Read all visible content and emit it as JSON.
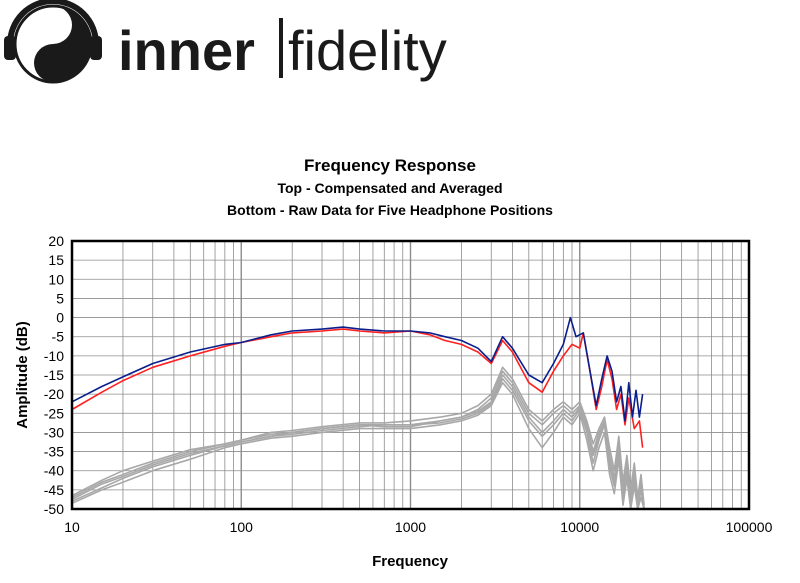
{
  "logo": {
    "wordmark_left": "inner",
    "wordmark_right": "fidelity"
  },
  "colors": {
    "series_blue": "#0a1e8c",
    "series_red": "#ff2020",
    "series_raw": "#a8a8a8",
    "grid": "#8c8c8c"
  },
  "chart_data": {
    "type": "line",
    "title": "Frequency Response",
    "subtitle_1": "Top -  Compensated and Averaged",
    "subtitle_2": "Bottom - Raw Data for Five Headphone Positions",
    "xlabel": "Frequency",
    "ylabel": "Amplitude (dB)",
    "x_scale": "log",
    "xlim": [
      10,
      100000
    ],
    "ylim": [
      -50,
      20
    ],
    "x_ticks": [
      10,
      100,
      1000,
      10000,
      100000
    ],
    "x_tick_labels": [
      "10",
      "100",
      "1000",
      "10000",
      "100000"
    ],
    "y_ticks": [
      20,
      15,
      10,
      5,
      0,
      -5,
      -10,
      -15,
      -20,
      -25,
      -30,
      -35,
      -40,
      -45,
      -50
    ],
    "grid": true,
    "series": [
      {
        "color": "#0a1e8c",
        "points": [
          [
            10,
            -22
          ],
          [
            15,
            -18
          ],
          [
            20,
            -15.5
          ],
          [
            30,
            -12
          ],
          [
            50,
            -9
          ],
          [
            80,
            -7
          ],
          [
            100,
            -6.5
          ],
          [
            150,
            -4.5
          ],
          [
            200,
            -3.5
          ],
          [
            300,
            -3
          ],
          [
            400,
            -2.5
          ],
          [
            500,
            -3
          ],
          [
            700,
            -3.5
          ],
          [
            1000,
            -3.5
          ],
          [
            1300,
            -4
          ],
          [
            1600,
            -5
          ],
          [
            2000,
            -6
          ],
          [
            2500,
            -8
          ],
          [
            3000,
            -11.5
          ],
          [
            3500,
            -5
          ],
          [
            4000,
            -8
          ],
          [
            5000,
            -15
          ],
          [
            6000,
            -17
          ],
          [
            7000,
            -12
          ],
          [
            8000,
            -7
          ],
          [
            8800,
            0
          ],
          [
            9500,
            -5
          ],
          [
            10500,
            -4
          ],
          [
            11500,
            -14
          ],
          [
            12500,
            -23
          ],
          [
            13500,
            -16
          ],
          [
            14500,
            -10
          ],
          [
            15500,
            -14
          ],
          [
            16500,
            -22
          ],
          [
            17500,
            -18
          ],
          [
            18500,
            -27
          ],
          [
            19500,
            -17
          ],
          [
            20500,
            -26
          ],
          [
            21500,
            -19
          ],
          [
            22500,
            -26
          ],
          [
            23500,
            -20
          ]
        ]
      },
      {
        "color": "#ff2020",
        "points": [
          [
            10,
            -24
          ],
          [
            15,
            -19.5
          ],
          [
            20,
            -16.5
          ],
          [
            30,
            -13
          ],
          [
            50,
            -10
          ],
          [
            80,
            -7.5
          ],
          [
            100,
            -6.5
          ],
          [
            150,
            -5
          ],
          [
            200,
            -4
          ],
          [
            300,
            -3.5
          ],
          [
            400,
            -3
          ],
          [
            500,
            -3.5
          ],
          [
            700,
            -4
          ],
          [
            1000,
            -3.5
          ],
          [
            1300,
            -4.5
          ],
          [
            1600,
            -6
          ],
          [
            2000,
            -7
          ],
          [
            2500,
            -9
          ],
          [
            3000,
            -12
          ],
          [
            3500,
            -6
          ],
          [
            4000,
            -9
          ],
          [
            5000,
            -17
          ],
          [
            6000,
            -19.5
          ],
          [
            7000,
            -14
          ],
          [
            8000,
            -10
          ],
          [
            9000,
            -7
          ],
          [
            10000,
            -8
          ],
          [
            10500,
            -4
          ],
          [
            11500,
            -14
          ],
          [
            12500,
            -24
          ],
          [
            13500,
            -18
          ],
          [
            14500,
            -11
          ],
          [
            15500,
            -16
          ],
          [
            16500,
            -24
          ],
          [
            17500,
            -20
          ],
          [
            18500,
            -28
          ],
          [
            19500,
            -21
          ],
          [
            21000,
            -29
          ],
          [
            22500,
            -27
          ],
          [
            23500,
            -34
          ]
        ]
      },
      {
        "color": "#a8a8a8",
        "points": [
          [
            10,
            -47
          ],
          [
            15,
            -43
          ],
          [
            20,
            -41
          ],
          [
            30,
            -38
          ],
          [
            50,
            -35
          ],
          [
            80,
            -33
          ],
          [
            100,
            -32
          ],
          [
            150,
            -30.5
          ],
          [
            200,
            -30
          ],
          [
            300,
            -29
          ],
          [
            500,
            -28
          ],
          [
            700,
            -28.5
          ],
          [
            1000,
            -28.5
          ],
          [
            1500,
            -27
          ],
          [
            2000,
            -26
          ],
          [
            2500,
            -24
          ],
          [
            3000,
            -21
          ],
          [
            3500,
            -14
          ],
          [
            4000,
            -17
          ],
          [
            5000,
            -25
          ],
          [
            6000,
            -28
          ],
          [
            7000,
            -25
          ],
          [
            8000,
            -23
          ],
          [
            9000,
            -25
          ],
          [
            10000,
            -23
          ],
          [
            11000,
            -28
          ],
          [
            12000,
            -35
          ],
          [
            13000,
            -30
          ],
          [
            14000,
            -27
          ],
          [
            15000,
            -36
          ],
          [
            16000,
            -42
          ],
          [
            17000,
            -33
          ],
          [
            18000,
            -45
          ],
          [
            19000,
            -38
          ],
          [
            20000,
            -47
          ],
          [
            21000,
            -40
          ],
          [
            22000,
            -48
          ],
          [
            23000,
            -43
          ],
          [
            24000,
            -50
          ]
        ]
      },
      {
        "color": "#a8a8a8",
        "points": [
          [
            10,
            -48
          ],
          [
            15,
            -44.5
          ],
          [
            20,
            -42
          ],
          [
            30,
            -39
          ],
          [
            50,
            -36
          ],
          [
            80,
            -33.5
          ],
          [
            100,
            -32.5
          ],
          [
            150,
            -31
          ],
          [
            200,
            -30.5
          ],
          [
            300,
            -29.5
          ],
          [
            500,
            -28.5
          ],
          [
            700,
            -28
          ],
          [
            1000,
            -28
          ],
          [
            1500,
            -27.5
          ],
          [
            2000,
            -26.5
          ],
          [
            2500,
            -25
          ],
          [
            3000,
            -22.5
          ],
          [
            3500,
            -16
          ],
          [
            4000,
            -19
          ],
          [
            5000,
            -27
          ],
          [
            6000,
            -31
          ],
          [
            7000,
            -28
          ],
          [
            8000,
            -25
          ],
          [
            9000,
            -27
          ],
          [
            10000,
            -24
          ],
          [
            11000,
            -30
          ],
          [
            12000,
            -38
          ],
          [
            13000,
            -32
          ],
          [
            14000,
            -28
          ],
          [
            15000,
            -39
          ],
          [
            16000,
            -44
          ],
          [
            17000,
            -35
          ],
          [
            18000,
            -47
          ],
          [
            19000,
            -40
          ],
          [
            20000,
            -49
          ],
          [
            21000,
            -42
          ],
          [
            22000,
            -50
          ],
          [
            23000,
            -45
          ],
          [
            24000,
            -50
          ]
        ]
      },
      {
        "color": "#a8a8a8",
        "points": [
          [
            10,
            -46.5
          ],
          [
            15,
            -42.5
          ],
          [
            20,
            -40
          ],
          [
            30,
            -37.5
          ],
          [
            50,
            -34.5
          ],
          [
            80,
            -33
          ],
          [
            100,
            -32
          ],
          [
            150,
            -30
          ],
          [
            200,
            -29.5
          ],
          [
            300,
            -28.5
          ],
          [
            500,
            -27.5
          ],
          [
            700,
            -27.5
          ],
          [
            1000,
            -27
          ],
          [
            1500,
            -26
          ],
          [
            2000,
            -25
          ],
          [
            2500,
            -23
          ],
          [
            3000,
            -20
          ],
          [
            3500,
            -13
          ],
          [
            4000,
            -16
          ],
          [
            5000,
            -24
          ],
          [
            6000,
            -27
          ],
          [
            7000,
            -24
          ],
          [
            8000,
            -22
          ],
          [
            9000,
            -24
          ],
          [
            10000,
            -22
          ],
          [
            11000,
            -27
          ],
          [
            12000,
            -33
          ],
          [
            13000,
            -29
          ],
          [
            14000,
            -26
          ],
          [
            15000,
            -34
          ],
          [
            16000,
            -40
          ],
          [
            17000,
            -31
          ],
          [
            18000,
            -43
          ],
          [
            19000,
            -36
          ],
          [
            20000,
            -45
          ],
          [
            21000,
            -38
          ],
          [
            22000,
            -47
          ],
          [
            23000,
            -41
          ],
          [
            24000,
            -49
          ]
        ]
      },
      {
        "color": "#a8a8a8",
        "points": [
          [
            10,
            -48.5
          ],
          [
            15,
            -45
          ],
          [
            20,
            -43
          ],
          [
            30,
            -40
          ],
          [
            50,
            -37
          ],
          [
            80,
            -34
          ],
          [
            100,
            -33
          ],
          [
            150,
            -31.5
          ],
          [
            200,
            -31
          ],
          [
            300,
            -30
          ],
          [
            500,
            -29
          ],
          [
            700,
            -29
          ],
          [
            1000,
            -29
          ],
          [
            1500,
            -28
          ],
          [
            2000,
            -27
          ],
          [
            2500,
            -25.5
          ],
          [
            3000,
            -23
          ],
          [
            3500,
            -17
          ],
          [
            4000,
            -20
          ],
          [
            5000,
            -29
          ],
          [
            6000,
            -34
          ],
          [
            7000,
            -30
          ],
          [
            8000,
            -26
          ],
          [
            9000,
            -28
          ],
          [
            10000,
            -25
          ],
          [
            11000,
            -32
          ],
          [
            12000,
            -40
          ],
          [
            13000,
            -34
          ],
          [
            14000,
            -30
          ],
          [
            15000,
            -41
          ],
          [
            16000,
            -46
          ],
          [
            17000,
            -37
          ],
          [
            18000,
            -49
          ],
          [
            19000,
            -42
          ],
          [
            20000,
            -50
          ],
          [
            21000,
            -44
          ],
          [
            22000,
            -50
          ],
          [
            23000,
            -47
          ],
          [
            24000,
            -50
          ]
        ]
      },
      {
        "color": "#a8a8a8",
        "points": [
          [
            10,
            -47.5
          ],
          [
            15,
            -43.5
          ],
          [
            20,
            -41.5
          ],
          [
            30,
            -38.5
          ],
          [
            50,
            -35.5
          ],
          [
            80,
            -33.5
          ],
          [
            100,
            -32.5
          ],
          [
            150,
            -31
          ],
          [
            200,
            -30
          ],
          [
            300,
            -29
          ],
          [
            500,
            -28
          ],
          [
            700,
            -28
          ],
          [
            1000,
            -28
          ],
          [
            1500,
            -27
          ],
          [
            2000,
            -26
          ],
          [
            2500,
            -24.5
          ],
          [
            3000,
            -22
          ],
          [
            3500,
            -15
          ],
          [
            4000,
            -18
          ],
          [
            5000,
            -26
          ],
          [
            6000,
            -30
          ],
          [
            7000,
            -27
          ],
          [
            8000,
            -24
          ],
          [
            9000,
            -26
          ],
          [
            10000,
            -23.5
          ],
          [
            11000,
            -29
          ],
          [
            12000,
            -36
          ],
          [
            13000,
            -31
          ],
          [
            14000,
            -27.5
          ],
          [
            15000,
            -37
          ],
          [
            16000,
            -43
          ],
          [
            17000,
            -34
          ],
          [
            18000,
            -46
          ],
          [
            19000,
            -39
          ],
          [
            20000,
            -48
          ],
          [
            21000,
            -41
          ],
          [
            22000,
            -49
          ],
          [
            23000,
            -44
          ],
          [
            24000,
            -50
          ]
        ]
      }
    ]
  }
}
